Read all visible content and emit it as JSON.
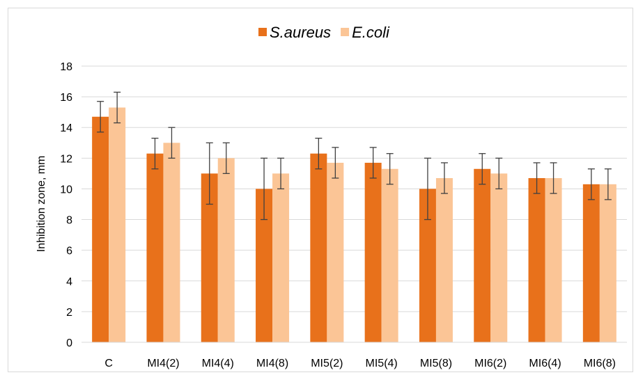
{
  "chart_data": {
    "type": "bar",
    "title": "",
    "xlabel": "",
    "ylabel": "Inhibition zone, mm",
    "ylim": [
      0,
      18
    ],
    "ytick_step": 2,
    "grid": true,
    "legend_position": "top",
    "categories": [
      "C",
      "MI4(2)",
      "MI4(4)",
      "MI4(8)",
      "MI5(2)",
      "MI5(4)",
      "MI5(8)",
      "MI6(2)",
      "MI6(4)",
      "MI6(8)"
    ],
    "series": [
      {
        "name": "S.aureus",
        "color": "#e8711b",
        "values": [
          14.7,
          12.3,
          11.0,
          10.0,
          12.3,
          11.7,
          10.0,
          11.3,
          10.7,
          10.3
        ],
        "errors": [
          1.0,
          1.0,
          2.0,
          2.0,
          1.0,
          1.0,
          2.0,
          1.0,
          1.0,
          1.0
        ]
      },
      {
        "name": "E.coli",
        "color": "#fbc596",
        "values": [
          15.3,
          13.0,
          12.0,
          11.0,
          11.7,
          11.3,
          10.7,
          11.0,
          10.7,
          10.3
        ],
        "errors": [
          1.0,
          1.0,
          1.0,
          1.0,
          1.0,
          1.0,
          1.0,
          1.0,
          1.0,
          1.0
        ]
      }
    ]
  }
}
